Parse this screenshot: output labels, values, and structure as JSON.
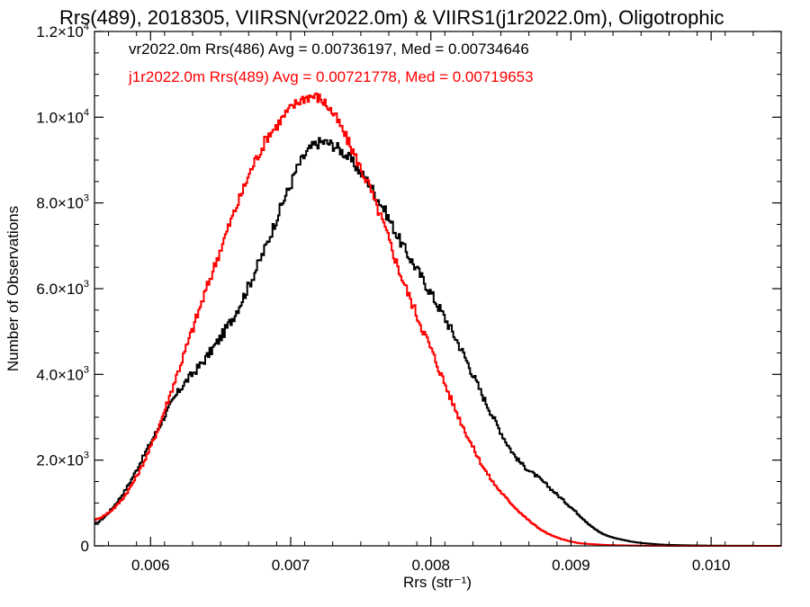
{
  "chart_data": {
    "type": "line",
    "title": "Rrs(489), 2018305, VIIRSN(vr2022.0m) & VIIRS1(j1r2022.0m), Oligotrophic",
    "xlabel": "Rrs (str⁻¹)",
    "ylabel": "Number of Observations",
    "xlim": [
      0.0056,
      0.0105
    ],
    "ylim": [
      0,
      12000
    ],
    "x_ticks": [
      {
        "value": 0.006,
        "label": "0.006"
      },
      {
        "value": 0.007,
        "label": "0.007"
      },
      {
        "value": 0.008,
        "label": "0.008"
      },
      {
        "value": 0.009,
        "label": "0.009"
      },
      {
        "value": 0.01,
        "label": "0.010"
      }
    ],
    "y_ticks": [
      {
        "value": 0,
        "mant": "0",
        "exp": ""
      },
      {
        "value": 2000,
        "mant": "2.0×10",
        "exp": "3"
      },
      {
        "value": 4000,
        "mant": "4.0×10",
        "exp": "3"
      },
      {
        "value": 6000,
        "mant": "6.0×10",
        "exp": "3"
      },
      {
        "value": 8000,
        "mant": "8.0×10",
        "exp": "3"
      },
      {
        "value": 10000,
        "mant": "1.0×10",
        "exp": "4"
      },
      {
        "value": 12000,
        "mant": "1.2×10",
        "exp": "4"
      }
    ],
    "grid": false,
    "legend_position": "top-left",
    "series": [
      {
        "name": "vr2022.0m Rrs(486) Avg = 0.00736197, Med = 0.00734646",
        "color": "#000000",
        "style": "step",
        "x": [
          0.0056,
          0.0058,
          0.006,
          0.0062,
          0.0064,
          0.0066,
          0.0068,
          0.007,
          0.0071,
          0.0072,
          0.0073,
          0.0074,
          0.0075,
          0.0076,
          0.0078,
          0.008,
          0.0082,
          0.0084,
          0.0086,
          0.0088,
          0.009,
          0.0092,
          0.0094,
          0.0096,
          0.0098,
          0.01,
          0.0105
        ],
        "y": [
          500,
          1200,
          2400,
          3600,
          4400,
          5400,
          6800,
          8400,
          9100,
          9400,
          9350,
          9100,
          8700,
          8200,
          7000,
          5900,
          4700,
          3300,
          2100,
          1500,
          900,
          330,
          120,
          40,
          15,
          5,
          0
        ]
      },
      {
        "name": "j1r2022.0m Rrs(489) Avg = 0.00721778, Med = 0.00719653",
        "color": "#ff0000",
        "style": "step",
        "x": [
          0.0056,
          0.0058,
          0.006,
          0.0062,
          0.0064,
          0.0066,
          0.0068,
          0.0069,
          0.007,
          0.0071,
          0.0072,
          0.0073,
          0.0074,
          0.0075,
          0.0076,
          0.0078,
          0.008,
          0.0082,
          0.0084,
          0.0086,
          0.0088,
          0.009,
          0.0092,
          0.0094,
          0.0096,
          0.0098,
          0.0105
        ],
        "y": [
          600,
          1100,
          2300,
          4100,
          6000,
          7800,
          9300,
          9800,
          10200,
          10450,
          10450,
          10100,
          9500,
          8800,
          8000,
          6200,
          4600,
          3000,
          1700,
          900,
          350,
          100,
          30,
          10,
          3,
          0,
          0
        ]
      }
    ]
  }
}
